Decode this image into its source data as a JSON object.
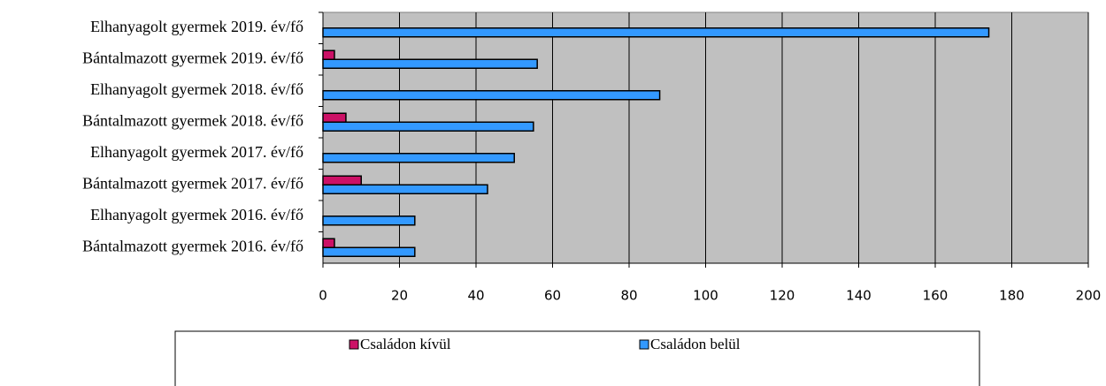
{
  "chart_data": {
    "type": "hbar",
    "categories": [
      "Elhanyagolt gyermek 2019. év/fő",
      "Bántalmazott gyermek 2019. év/fő",
      "Elhanyagolt gyermek 2018. év/fő",
      "Bántalmazott gyermek 2018. év/fő",
      "Elhanyagolt gyermek 2017. év/fő",
      "Bántalmazott gyermek 2017. év/fő",
      "Elhanyagolt gyermek 2016. év/fő",
      "Bántalmazott gyermek 2016. év/fő"
    ],
    "series": [
      {
        "name": "Családon kívül",
        "color": "#cc1166",
        "values": [
          0,
          3,
          0,
          6,
          0,
          10,
          0,
          3
        ]
      },
      {
        "name": "Családon belül",
        "color": "#3399ff",
        "values": [
          174,
          56,
          88,
          55,
          50,
          43,
          24,
          24
        ]
      }
    ],
    "xlim": [
      0,
      200
    ],
    "xticks": [
      0,
      20,
      40,
      60,
      80,
      100,
      120,
      140,
      160,
      180,
      200
    ],
    "grid": true,
    "legend": "bottom"
  }
}
